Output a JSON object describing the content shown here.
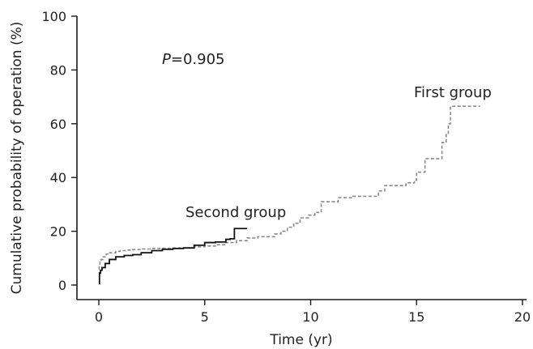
{
  "chart_data": {
    "type": "line",
    "xlabel": "Time (yr)",
    "ylabel": "Cumulative probability of operation (%)",
    "xlim": [
      0,
      20
    ],
    "ylim": [
      0,
      100
    ],
    "xticks": [
      0,
      5,
      10,
      15,
      20
    ],
    "yticks": [
      0,
      20,
      40,
      60,
      80,
      100
    ],
    "grid": false,
    "annotations": {
      "p_value_italic": "P",
      "p_value_rest": "=0.905"
    },
    "series": [
      {
        "name": "First group",
        "color": "#8a8a8a",
        "style": "dashed-step",
        "x": [
          0.0,
          0.02,
          0.05,
          0.1,
          0.2,
          0.35,
          0.5,
          0.8,
          1.0,
          1.3,
          1.6,
          2.0,
          2.5,
          3.0,
          3.5,
          4.0,
          4.5,
          5.0,
          5.5,
          6.0,
          6.5,
          7.0,
          7.5,
          8.0,
          8.3,
          8.6,
          8.9,
          9.2,
          9.5,
          9.9,
          10.2,
          10.5,
          11.0,
          11.3,
          12.0,
          13.0,
          13.2,
          13.5,
          14.5,
          14.9,
          15.0,
          15.4,
          16.0,
          16.2,
          16.4,
          16.5,
          16.6,
          18.0
        ],
        "y": [
          6.0,
          7.5,
          8.5,
          9.5,
          10.5,
          11.5,
          12.0,
          12.5,
          12.8,
          13.0,
          13.2,
          13.4,
          13.6,
          13.7,
          13.8,
          13.8,
          14.2,
          14.5,
          15.0,
          15.8,
          16.5,
          17.5,
          18.0,
          18.0,
          19.0,
          20.0,
          21.5,
          23.0,
          25.0,
          26.0,
          27.0,
          31.0,
          31.0,
          32.5,
          33.0,
          33.0,
          35.0,
          37.0,
          38.0,
          39.0,
          42.0,
          47.0,
          47.0,
          53.0,
          56.0,
          60.0,
          66.5,
          66.5
        ]
      },
      {
        "name": "Second group",
        "color": "#111111",
        "style": "solid-step",
        "x": [
          0.0,
          0.03,
          0.08,
          0.15,
          0.3,
          0.5,
          0.8,
          1.2,
          1.6,
          2.0,
          2.5,
          3.0,
          3.5,
          4.0,
          4.5,
          5.0,
          5.5,
          6.0,
          6.2,
          6.4,
          7.0
        ],
        "y": [
          0.5,
          4.5,
          5.5,
          6.5,
          8.0,
          9.5,
          10.5,
          11.0,
          11.3,
          12.0,
          12.8,
          13.3,
          13.6,
          13.8,
          14.8,
          15.8,
          16.0,
          17.0,
          17.2,
          21.0,
          21.0
        ]
      }
    ],
    "labels": {
      "first_group": "First group",
      "second_group": "Second group"
    }
  }
}
